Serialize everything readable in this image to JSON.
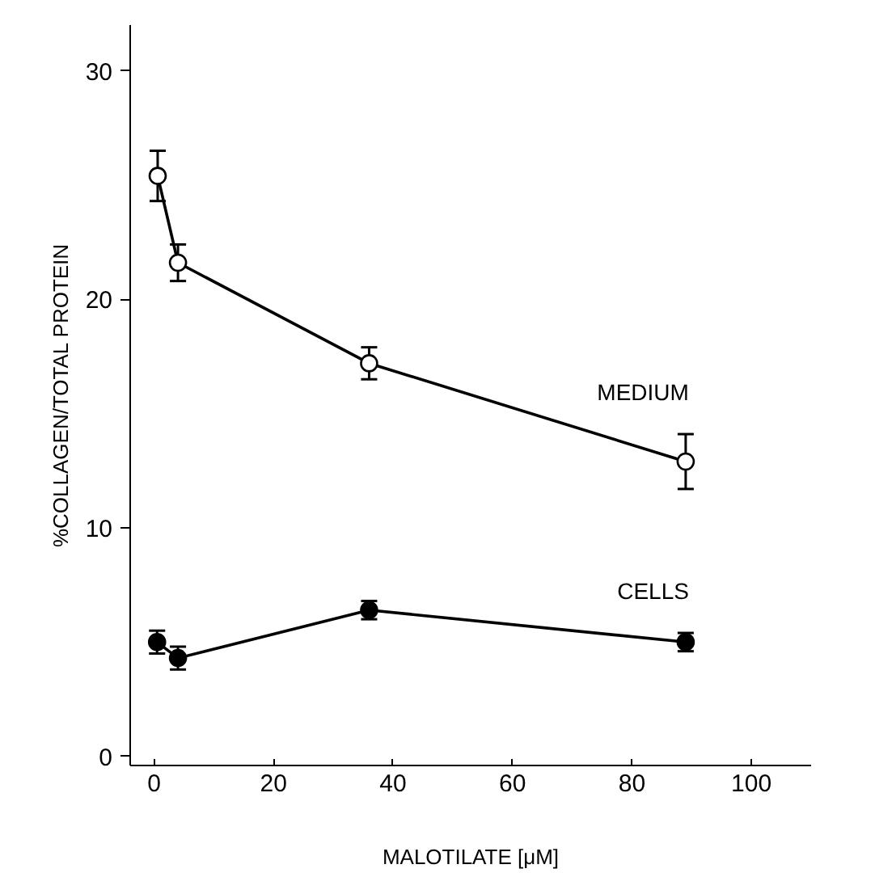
{
  "chart_data": {
    "type": "line",
    "xlabel": "MALOTILATE [μM]",
    "ylabel": "%COLLAGEN/TOTAL PROTEIN",
    "xlim": [
      -4,
      110
    ],
    "ylim": [
      -0.4,
      32
    ],
    "xticks": [
      0,
      20,
      40,
      60,
      80,
      100
    ],
    "yticks": [
      0,
      10,
      20,
      30
    ],
    "grid": false,
    "series": [
      {
        "name": "MEDIUM",
        "color": "#000000",
        "marker": "circle_open",
        "x": [
          0.6,
          4,
          36,
          89
        ],
        "values": [
          25.4,
          21.6,
          17.2,
          12.9
        ],
        "errors": [
          1.1,
          0.8,
          0.7,
          1.2
        ]
      },
      {
        "name": "CELLS",
        "color": "#000000",
        "marker": "circle",
        "x": [
          0.5,
          4,
          36,
          89
        ],
        "values": [
          5.0,
          4.3,
          6.4,
          5.0
        ],
        "errors": [
          0.5,
          0.5,
          0.4,
          0.4
        ]
      }
    ]
  }
}
